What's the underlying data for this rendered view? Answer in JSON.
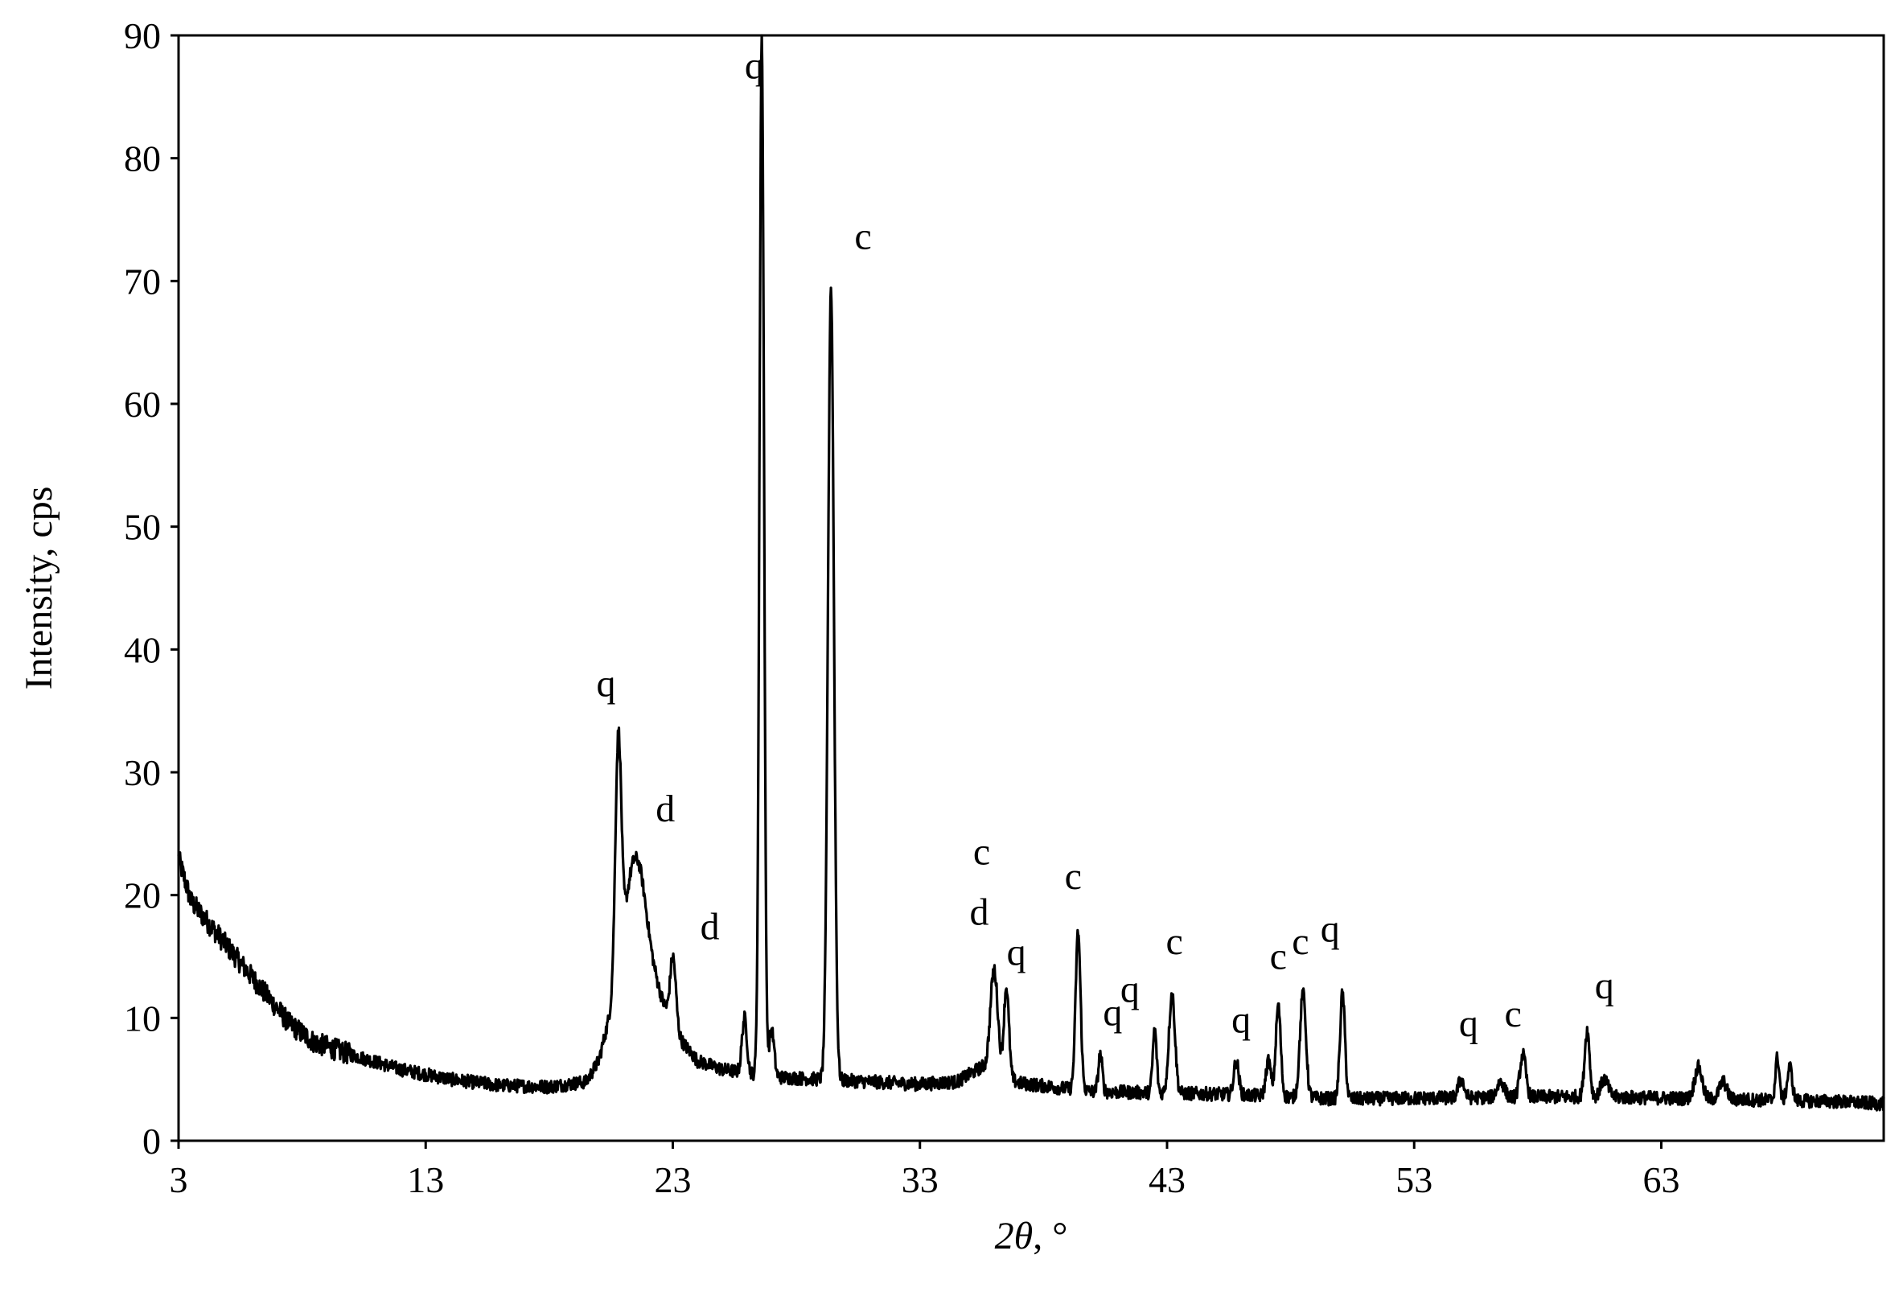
{
  "chart_data": {
    "type": "line",
    "title": "",
    "xlabel_prefix": "2",
    "xlabel_symbol": "θ",
    "xlabel_suffix": ", °",
    "ylabel": "Intensity, cps",
    "xlim": [
      3,
      72
    ],
    "ylim": [
      0,
      90
    ],
    "xticks": [
      3,
      13,
      23,
      33,
      43,
      53,
      63
    ],
    "yticks": [
      0,
      10,
      20,
      30,
      40,
      50,
      60,
      70,
      80,
      90
    ],
    "line_color": "#000000",
    "grid": false,
    "legend": "none",
    "background": 4.0,
    "baseline_points": [
      [
        3,
        23
      ],
      [
        3.5,
        19.5
      ],
      [
        4.5,
        17
      ],
      [
        5.5,
        14.5
      ],
      [
        6.5,
        12
      ],
      [
        7.5,
        9.5
      ],
      [
        8.5,
        8
      ],
      [
        10,
        7
      ],
      [
        12,
        5.8
      ],
      [
        14,
        5
      ],
      [
        16,
        4.5
      ],
      [
        18,
        4.4
      ],
      [
        19.5,
        4.8
      ],
      [
        20,
        6.5
      ],
      [
        20.8,
        13
      ],
      [
        21.5,
        17
      ],
      [
        22.3,
        13
      ],
      [
        23,
        9
      ],
      [
        24,
        6.5
      ],
      [
        25,
        5.8
      ],
      [
        27,
        5.2
      ],
      [
        29,
        5
      ],
      [
        31,
        4.8
      ],
      [
        33,
        4.6
      ],
      [
        34.5,
        4.8
      ],
      [
        35.5,
        6
      ],
      [
        37,
        4.7
      ],
      [
        40,
        4
      ],
      [
        45,
        3.8
      ],
      [
        50,
        3.4
      ],
      [
        55,
        3.5
      ],
      [
        60,
        3.6
      ],
      [
        65,
        3.4
      ],
      [
        70,
        3.2
      ],
      [
        72,
        3
      ]
    ],
    "peaks": [
      {
        "x": 20.8,
        "y": 32,
        "w": 0.12
      },
      {
        "x": 21.5,
        "y": 23,
        "w": 0.35
      },
      {
        "x": 23.0,
        "y": 15,
        "w": 0.12
      },
      {
        "x": 25.9,
        "y": 10,
        "w": 0.1
      },
      {
        "x": 26.6,
        "y": 90,
        "w": 0.09
      },
      {
        "x": 27.0,
        "y": 9,
        "w": 0.1
      },
      {
        "x": 29.4,
        "y": 69.5,
        "w": 0.12
      },
      {
        "x": 36.0,
        "y": 14,
        "w": 0.15
      },
      {
        "x": 36.5,
        "y": 12.5,
        "w": 0.1
      },
      {
        "x": 39.4,
        "y": 17,
        "w": 0.1
      },
      {
        "x": 40.3,
        "y": 7,
        "w": 0.08
      },
      {
        "x": 42.5,
        "y": 9,
        "w": 0.08
      },
      {
        "x": 43.2,
        "y": 12,
        "w": 0.12
      },
      {
        "x": 45.8,
        "y": 6.5,
        "w": 0.1
      },
      {
        "x": 47.1,
        "y": 6.5,
        "w": 0.1
      },
      {
        "x": 47.5,
        "y": 11,
        "w": 0.1
      },
      {
        "x": 48.5,
        "y": 12,
        "w": 0.12
      },
      {
        "x": 50.1,
        "y": 12,
        "w": 0.1
      },
      {
        "x": 54.9,
        "y": 5,
        "w": 0.12
      },
      {
        "x": 56.5,
        "y": 4.8,
        "w": 0.15
      },
      {
        "x": 57.4,
        "y": 7,
        "w": 0.12
      },
      {
        "x": 60.0,
        "y": 9,
        "w": 0.1
      },
      {
        "x": 60.7,
        "y": 5,
        "w": 0.15
      },
      {
        "x": 64.5,
        "y": 6,
        "w": 0.15
      },
      {
        "x": 65.5,
        "y": 4.8,
        "w": 0.15
      },
      {
        "x": 67.7,
        "y": 6.8,
        "w": 0.08
      },
      {
        "x": 68.2,
        "y": 6,
        "w": 0.1
      }
    ],
    "annotations": [
      {
        "text": "q",
        "x": 20.3,
        "y": 36.2
      },
      {
        "text": "d",
        "x": 22.7,
        "y": 26
      },
      {
        "text": "d",
        "x": 24.5,
        "y": 16.4
      },
      {
        "text": "q",
        "x": 26.3,
        "y": 86.5
      },
      {
        "text": "c",
        "x": 30.7,
        "y": 72.6
      },
      {
        "text": "c",
        "x": 35.5,
        "y": 22.5
      },
      {
        "text": "d",
        "x": 35.4,
        "y": 17.6
      },
      {
        "text": "q",
        "x": 36.9,
        "y": 14.3
      },
      {
        "text": "c",
        "x": 39.2,
        "y": 20.5
      },
      {
        "text": "q",
        "x": 40.8,
        "y": 9.4
      },
      {
        "text": "q",
        "x": 41.5,
        "y": 11.3
      },
      {
        "text": "c",
        "x": 43.3,
        "y": 15.2
      },
      {
        "text": "q",
        "x": 46.0,
        "y": 8.8
      },
      {
        "text": "c",
        "x": 47.5,
        "y": 14.0
      },
      {
        "text": "c",
        "x": 48.4,
        "y": 15.2
      },
      {
        "text": "q",
        "x": 49.6,
        "y": 16.2
      },
      {
        "text": "q",
        "x": 55.2,
        "y": 8.5
      },
      {
        "text": "c",
        "x": 57.0,
        "y": 9.3
      },
      {
        "text": "q",
        "x": 60.7,
        "y": 11.6
      }
    ]
  }
}
